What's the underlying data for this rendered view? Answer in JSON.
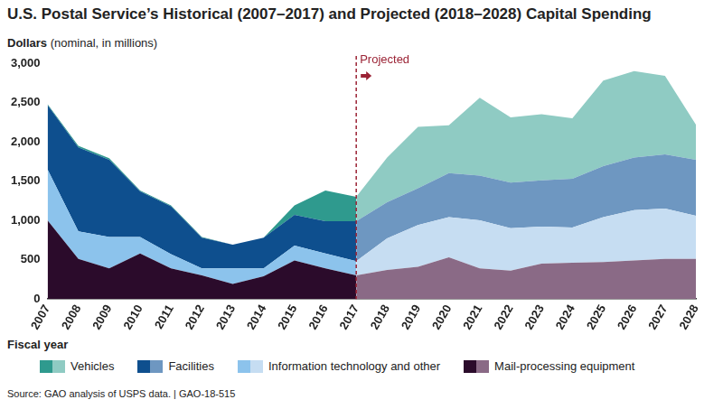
{
  "chart_data": {
    "type": "area",
    "stacked": true,
    "title": "U.S. Postal Service’s Historical (2007–2017) and Projected (2018–2028) Capital Spending",
    "y_label": "Dollars",
    "y_unit": "(nominal, in millions)",
    "x_label": "Fiscal year",
    "source": "Source: GAO analysis of USPS data.  |  GAO-18-515",
    "annotations": [
      {
        "text": "Projected",
        "x": "2017"
      }
    ],
    "categories": [
      "2007",
      "2008",
      "2009",
      "2010",
      "2011",
      "2012",
      "2013",
      "2014",
      "2015",
      "2016",
      "2017",
      "2018",
      "2019",
      "2020",
      "2021",
      "2022",
      "2023",
      "2024",
      "2025",
      "2026",
      "2027",
      "2028"
    ],
    "series": [
      {
        "name": "Vehicles",
        "colors": [
          "#2f9a8e",
          "#8fcbc3"
        ],
        "values": [
          10,
          20,
          20,
          10,
          10,
          10,
          0,
          0,
          120,
          390,
          310,
          570,
          780,
          610,
          990,
          830,
          840,
          770,
          1090,
          1100,
          1000,
          450
        ]
      },
      {
        "name": "Facilities",
        "colors": [
          "#0e4f8e",
          "#6e97c1"
        ],
        "values": [
          820,
          1070,
          980,
          580,
          610,
          390,
          300,
          390,
          390,
          410,
          510,
          460,
          470,
          560,
          570,
          580,
          590,
          620,
          650,
          670,
          690,
          710
        ]
      },
      {
        "name": "Information technology and other",
        "colors": [
          "#8cc3ec",
          "#c6ddf2"
        ],
        "values": [
          650,
          350,
          400,
          210,
          180,
          90,
          200,
          100,
          190,
          190,
          180,
          400,
          530,
          510,
          610,
          540,
          470,
          450,
          570,
          640,
          640,
          550
        ]
      },
      {
        "name": "Mail-processing equipment",
        "colors": [
          "#2b0b2b",
          "#8a6a86"
        ],
        "values": [
          1000,
          510,
          390,
          580,
          390,
          300,
          190,
          290,
          490,
          390,
          300,
          370,
          410,
          530,
          390,
          360,
          450,
          460,
          470,
          490,
          510,
          510
        ]
      }
    ],
    "ylim": [
      0,
      3000
    ],
    "yticks": [
      0,
      500,
      {
        "value": 1000,
        "label": "1,000"
      },
      {
        "value": 1500,
        "label": "1,500"
      },
      {
        "value": 2000,
        "label": "2,000"
      },
      {
        "value": 2500,
        "label": "2,500"
      },
      {
        "value": 3000,
        "label": "3,000"
      }
    ],
    "grid": false,
    "legend": "bottom"
  }
}
